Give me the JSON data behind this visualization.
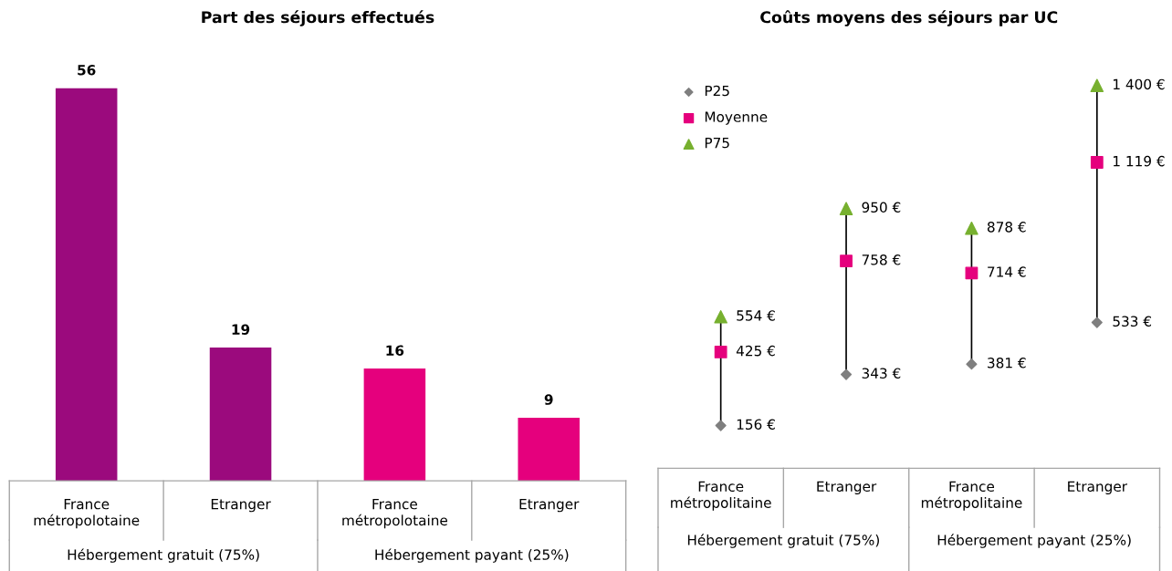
{
  "chart_data": [
    {
      "type": "bar",
      "title": "Part des séjours effectués",
      "categories": [
        "France\nmétropolotaine",
        "Etranger",
        "France\nmétropolotaine",
        "Etranger"
      ],
      "values": [
        56,
        19,
        16,
        9
      ],
      "colors": [
        "#9b0a7d",
        "#9b0a7d",
        "#e5007d",
        "#e5007d"
      ],
      "data_labels": true,
      "grid": false,
      "legend": false,
      "annotations": [
        "Hébergement gratuit (75%)",
        "Hébergement payant (25%)"
      ]
    },
    {
      "type": "scatter",
      "title": "Coûts moyens des séjours par UC",
      "categories": [
        "France\nmétropolitaine",
        "Etranger",
        "France\nmétropolitaine",
        "Etranger"
      ],
      "series": [
        {
          "name": "P25",
          "color": "#7f7f7f",
          "marker": "diamond",
          "values": [
            156,
            343,
            381,
            533
          ],
          "value_labels": [
            "156 €",
            "343 €",
            "381 €",
            "533 €"
          ]
        },
        {
          "name": "Moyenne",
          "color": "#e5007d",
          "marker": "square",
          "values": [
            425,
            758,
            714,
            1119
          ],
          "value_labels": [
            "425 €",
            "758 €",
            "714 €",
            "1 119 €"
          ]
        },
        {
          "name": "P75",
          "color": "#77b02f",
          "marker": "triangle",
          "values": [
            554,
            950,
            878,
            1400
          ],
          "value_labels": [
            "554 €",
            "950 €",
            "878 €",
            "1 400 €"
          ]
        }
      ],
      "grid": false,
      "legend": "top left",
      "annotations": [
        "Hébergement gratuit (75%)",
        "Hébergement payant (25%)"
      ]
    }
  ]
}
